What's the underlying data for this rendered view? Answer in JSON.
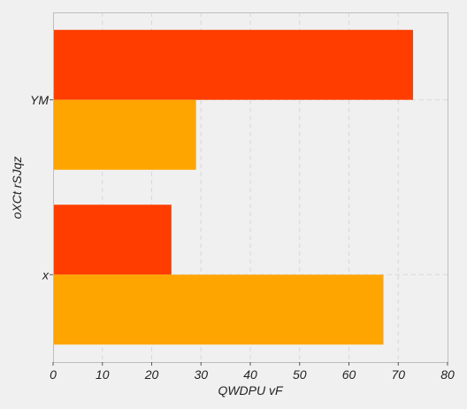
{
  "chart_data": {
    "type": "bar",
    "orientation": "horizontal",
    "title": "",
    "xlabel": "QWDPU vF",
    "ylabel": "oXCt rSJqz",
    "xlim": [
      0,
      80
    ],
    "x_ticks": [
      "0",
      "10",
      "20",
      "30",
      "40",
      "50",
      "60",
      "70",
      "80"
    ],
    "categories": [
      "x",
      "YM"
    ],
    "series": [
      {
        "color": "#ff3d00",
        "values": [
          24,
          73
        ]
      },
      {
        "color": "#ffa500",
        "values": [
          67,
          29
        ]
      }
    ],
    "grid": true,
    "legend": "none"
  }
}
